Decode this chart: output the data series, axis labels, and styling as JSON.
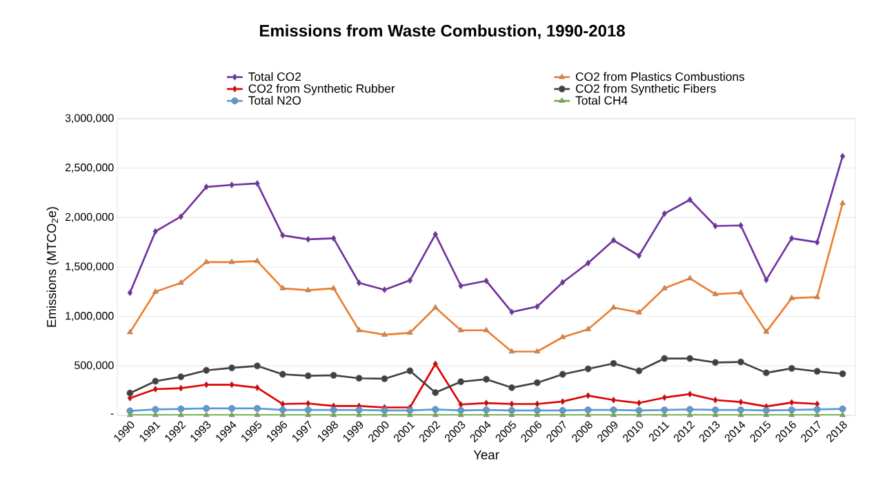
{
  "chart_data": {
    "type": "line",
    "title": "Emissions from Waste Combustion, 1990-2018",
    "xlabel": "Year",
    "ylabel": "Emissions (MTCO$_{2}$e)",
    "categories": [
      "1990",
      "1991",
      "1992",
      "1993",
      "1994",
      "1995",
      "1996",
      "1997",
      "1998",
      "1999",
      "2000",
      "2001",
      "2002",
      "2003",
      "2004",
      "2005",
      "2006",
      "2007",
      "2008",
      "2009",
      "2010",
      "2011",
      "2012",
      "2013",
      "2014",
      "2015",
      "2016",
      "2017",
      "2018"
    ],
    "series": [
      {
        "name": "Total CO2",
        "color": "#7030a0",
        "marker": "diamond",
        "values": [
          1240000,
          1860000,
          2010000,
          2310000,
          2330000,
          2345000,
          1820000,
          1780000,
          1790000,
          1340000,
          1270000,
          1365000,
          1830000,
          1310000,
          1360000,
          1045000,
          1100000,
          1345000,
          1540000,
          1770000,
          1615000,
          2040000,
          2180000,
          1915000,
          1920000,
          1370000,
          1790000,
          1750000,
          2620000
        ]
      },
      {
        "name": "CO2 from Plastics Combustions",
        "color": "#ed7d31",
        "marker": "triangle",
        "values": [
          840000,
          1250000,
          1340000,
          1550000,
          1550000,
          1560000,
          1285000,
          1265000,
          1285000,
          860000,
          815000,
          835000,
          1090000,
          860000,
          860000,
          645000,
          645000,
          790000,
          870000,
          1090000,
          1040000,
          1285000,
          1385000,
          1225000,
          1240000,
          845000,
          1185000,
          1195000,
          2145000
        ]
      },
      {
        "name": "CO2 from Synthetic Rubber",
        "color": "#e00000",
        "marker": "diamond",
        "values": [
          175000,
          265000,
          275000,
          310000,
          310000,
          280000,
          115000,
          120000,
          95000,
          95000,
          80000,
          80000,
          520000,
          110000,
          125000,
          115000,
          115000,
          140000,
          200000,
          155000,
          125000,
          180000,
          215000,
          155000,
          135000,
          90000,
          130000,
          115000,
          null
        ]
      },
      {
        "name": "CO2 from Synthetic Fibers",
        "color": "#404040",
        "marker": "circle",
        "values": [
          225000,
          345000,
          390000,
          455000,
          480000,
          500000,
          415000,
          400000,
          405000,
          375000,
          370000,
          450000,
          230000,
          340000,
          365000,
          280000,
          330000,
          415000,
          470000,
          525000,
          450000,
          575000,
          575000,
          535000,
          540000,
          430000,
          475000,
          445000,
          420000
        ]
      },
      {
        "name": "Total N2O",
        "color": "#5b9bd5",
        "marker": "circle",
        "values": [
          45000,
          60000,
          65000,
          70000,
          70000,
          70000,
          55000,
          55000,
          55000,
          55000,
          50000,
          50000,
          60000,
          50000,
          55000,
          50000,
          50000,
          50000,
          55000,
          55000,
          50000,
          55000,
          60000,
          55000,
          55000,
          50000,
          55000,
          60000,
          65000
        ]
      },
      {
        "name": "Total CH4",
        "color": "#70ad47",
        "marker": "triangle",
        "values": [
          3000,
          3000,
          3000,
          3000,
          3000,
          3000,
          3000,
          3000,
          3000,
          3000,
          3000,
          3000,
          3000,
          3000,
          3000,
          3000,
          3000,
          3000,
          3000,
          3000,
          3000,
          3000,
          3000,
          3000,
          3000,
          3000,
          3000,
          3000,
          3000
        ]
      }
    ],
    "ylim": [
      0,
      3000000
    ],
    "yticks": [
      {
        "value": 0,
        "label": "-"
      },
      {
        "value": 500000,
        "label": "500,000"
      },
      {
        "value": 1000000,
        "label": "1,000,000"
      },
      {
        "value": 1500000,
        "label": "1,500,000"
      },
      {
        "value": 2000000,
        "label": "2,000,000"
      },
      {
        "value": 2500000,
        "label": "2,500,000"
      },
      {
        "value": 3000000,
        "label": "3,000,000"
      }
    ],
    "grid": "y",
    "legend": "top",
    "line_style": "solid"
  }
}
